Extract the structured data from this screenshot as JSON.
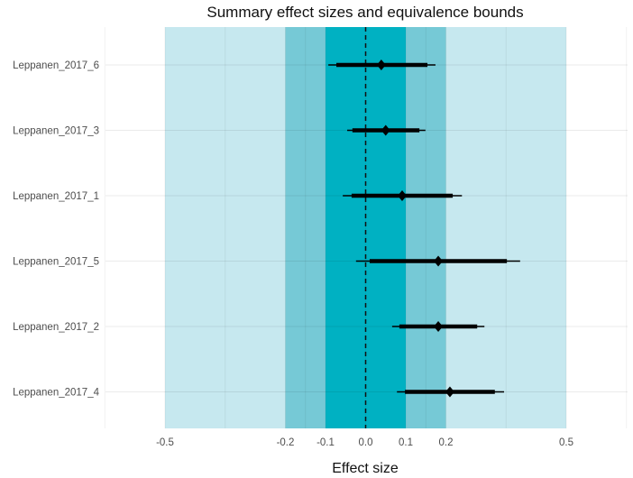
{
  "chart_data": {
    "type": "forest",
    "title": "Summary effect sizes and equivalence bounds",
    "xlabel": "Effect size",
    "ylabel": "",
    "xlim": [
      -0.65,
      0.65
    ],
    "xticks": [
      -0.5,
      -0.2,
      -0.1,
      0.0,
      0.1,
      0.2,
      0.5
    ],
    "xtick_labels": [
      "-0.5",
      "-0.2",
      "-0.1",
      "0.0",
      "0.1",
      "0.2",
      "0.5"
    ],
    "grid": true,
    "reference_line": 0,
    "equivalence_bounds": [
      {
        "lower": -0.5,
        "upper": 0.5,
        "color": "#c6e8ef"
      },
      {
        "lower": -0.2,
        "upper": 0.2,
        "color": "#76c9d6"
      },
      {
        "lower": -0.1,
        "upper": 0.1,
        "color": "#00b1c2"
      }
    ],
    "studies": [
      {
        "label": "Leppanen_2017_6",
        "estimate": 0.039,
        "ci90": [
          -0.073,
          0.154
        ],
        "ci95": [
          -0.093,
          0.174
        ]
      },
      {
        "label": "Leppanen_2017_3",
        "estimate": 0.05,
        "ci90": [
          -0.033,
          0.134
        ],
        "ci95": [
          -0.046,
          0.149
        ]
      },
      {
        "label": "Leppanen_2017_1",
        "estimate": 0.091,
        "ci90": [
          -0.035,
          0.217
        ],
        "ci95": [
          -0.057,
          0.24
        ]
      },
      {
        "label": "Leppanen_2017_5",
        "estimate": 0.181,
        "ci90": [
          0.01,
          0.352
        ],
        "ci95": [
          -0.024,
          0.385
        ]
      },
      {
        "label": "Leppanen_2017_2",
        "estimate": 0.181,
        "ci90": [
          0.084,
          0.278
        ],
        "ci95": [
          0.066,
          0.296
        ]
      },
      {
        "label": "Leppanen_2017_4",
        "estimate": 0.21,
        "ci90": [
          0.098,
          0.322
        ],
        "ci95": [
          0.078,
          0.345
        ]
      }
    ]
  }
}
